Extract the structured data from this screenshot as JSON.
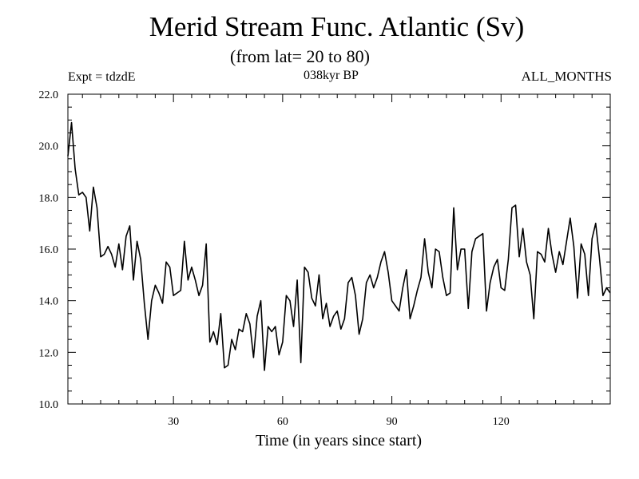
{
  "chart_data": {
    "type": "line",
    "title": "Merid Stream Func. Atlantic (Sv)",
    "subtitle": "(from lat= 20 to 80)",
    "annotations": {
      "left": "Expt = tdzdE",
      "center": "038kyr BP",
      "right": "ALL_MONTHS"
    },
    "xlabel": "Time (in years since start)",
    "ylabel": "",
    "xlim": [
      1,
      150
    ],
    "ylim": [
      10.0,
      22.0
    ],
    "xticks": [
      30,
      60,
      90,
      120
    ],
    "xtick_labels": [
      "30",
      "60",
      "90",
      "120"
    ],
    "yticks": [
      10.0,
      12.0,
      14.0,
      16.0,
      18.0,
      20.0,
      22.0
    ],
    "ytick_labels": [
      "10.0",
      "12.0",
      "14.0",
      "16.0",
      "18.0",
      "20.0",
      "22.0"
    ],
    "series": [
      {
        "name": "Atlantic meridional stream function",
        "x_start": 1,
        "values": [
          19.6,
          20.9,
          19.1,
          18.1,
          18.2,
          18.0,
          16.7,
          18.4,
          17.6,
          15.7,
          15.8,
          16.1,
          15.8,
          15.3,
          16.2,
          15.2,
          16.5,
          16.9,
          14.8,
          16.3,
          15.6,
          13.9,
          12.5,
          14.0,
          14.6,
          14.3,
          13.9,
          15.5,
          15.3,
          14.2,
          14.3,
          14.4,
          16.3,
          14.8,
          15.3,
          14.8,
          14.2,
          14.6,
          16.2,
          12.4,
          12.8,
          12.3,
          13.5,
          11.4,
          11.5,
          12.5,
          12.1,
          12.9,
          12.8,
          13.5,
          13.1,
          11.8,
          13.4,
          14.0,
          11.3,
          13.0,
          12.8,
          13.0,
          11.9,
          12.4,
          14.2,
          14.0,
          13.0,
          14.8,
          11.6,
          15.3,
          15.1,
          14.1,
          13.8,
          15.0,
          13.3,
          13.9,
          13.0,
          13.4,
          13.6,
          12.9,
          13.3,
          14.7,
          14.9,
          14.2,
          12.7,
          13.3,
          14.7,
          15.0,
          14.5,
          14.9,
          15.5,
          15.9,
          15.1,
          14.0,
          13.8,
          13.6,
          14.5,
          15.2,
          13.3,
          13.8,
          14.4,
          14.9,
          16.4,
          15.1,
          14.5,
          16.0,
          15.9,
          14.9,
          14.2,
          14.3,
          17.6,
          15.2,
          16.0,
          16.0,
          13.7,
          15.9,
          16.4,
          16.5,
          16.6,
          13.6,
          14.7,
          15.3,
          15.6,
          14.5,
          14.4,
          15.6,
          17.6,
          17.7,
          15.7,
          16.8,
          15.5,
          15.0,
          13.3,
          15.9,
          15.8,
          15.5,
          16.8,
          15.8,
          15.1,
          15.9,
          15.4,
          16.3,
          17.2,
          16.1,
          14.1,
          16.2,
          15.8,
          14.2,
          16.4,
          17.0,
          15.7,
          14.2,
          14.5,
          14.3
        ]
      }
    ],
    "line_color": "#000000"
  }
}
